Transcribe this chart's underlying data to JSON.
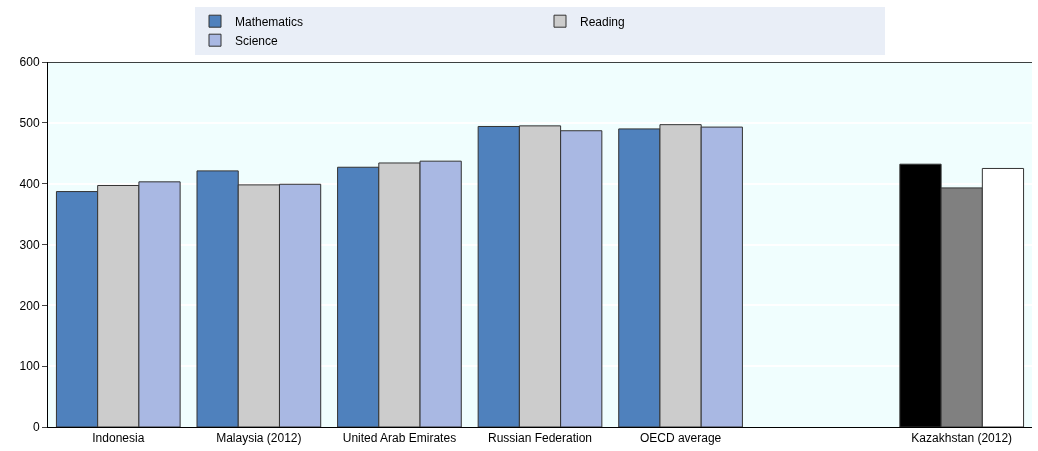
{
  "chart_data": {
    "type": "bar",
    "categories": [
      "Indonesia",
      "Malaysia (2012)",
      "United Arab Emirates",
      "Russian Federation",
      "OECD average",
      null,
      "Kazakhstan (2012)"
    ],
    "series": [
      {
        "name": "Mathematics",
        "color": "#4f81bd",
        "colors": [
          "#4f81bd",
          "#4f81bd",
          "#4f81bd",
          "#4f81bd",
          "#4f81bd",
          "#4f81bd",
          "#000000"
        ],
        "values": [
          387,
          421,
          427,
          494,
          490,
          null,
          432
        ]
      },
      {
        "name": "Reading",
        "color": "#cccccc",
        "colors": [
          "#cccccc",
          "#cccccc",
          "#cccccc",
          "#cccccc",
          "#cccccc",
          "#cccccc",
          "#808080"
        ],
        "values": [
          397,
          398,
          434,
          495,
          497,
          null,
          393
        ]
      },
      {
        "name": "Science",
        "color": "#a9b8e3",
        "colors": [
          "#a9b8e3",
          "#a9b8e3",
          "#a9b8e3",
          "#a9b8e3",
          "#a9b8e3",
          "#a9b8e3",
          "#ffffff"
        ],
        "values": [
          403,
          399,
          437,
          487,
          493,
          null,
          425
        ]
      }
    ],
    "ylim": [
      0,
      600
    ],
    "yticks": [
      0,
      100,
      200,
      300,
      400,
      500,
      600
    ],
    "grid": "y",
    "legend": "top"
  }
}
